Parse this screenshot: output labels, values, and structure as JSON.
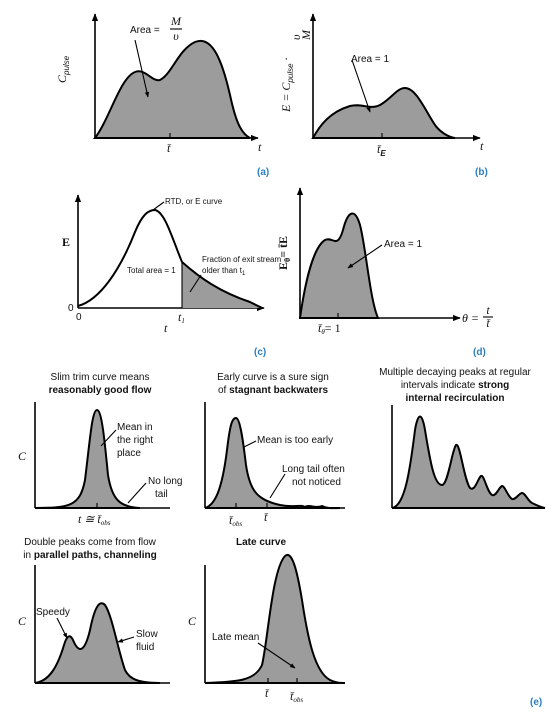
{
  "panel_labels": {
    "a": "(a)",
    "b": "(b)",
    "c": "(c)",
    "d": "(d)",
    "e": "(e)"
  },
  "panel_a": {
    "ylabel": "C",
    "ylabel_sub": "pulse",
    "area_prefix": "Area =",
    "area_num": "M",
    "area_den": "υ",
    "t_axis": "t",
    "tbar": "t̄"
  },
  "panel_b": {
    "ylabel": "E = C",
    "ylabel_sub": "pulse",
    "ylabel_frac_num": "υ",
    "ylabel_frac_den": "M",
    "area": "Area = 1",
    "t_axis": "t",
    "tbar": "t̄",
    "tbar_sub": "E"
  },
  "panel_c": {
    "ylabel": "E",
    "curve_label": "RTD, or E curve",
    "total": "Total area = 1",
    "frac_line1": "Fraction of exit stream",
    "frac_line2": "older than t",
    "frac_sub": "1",
    "x0": "0",
    "y0": "0",
    "t1": "t",
    "t1_sub": "1",
    "t_axis": "t"
  },
  "panel_d": {
    "ylabel": "E",
    "ylabel_sub": "θ",
    "ylabel_eq": "= t̄E",
    "area": "Area = 1",
    "theta_bar": "t̄",
    "theta_bar_sub": "θ",
    "theta_bar_eq": "= 1",
    "theta_axis": "θ =",
    "theta_num": "t",
    "theta_den": "t̄"
  },
  "e1": {
    "caption1": "Slim trim curve means",
    "caption2": "reasonably good flow",
    "c": "C",
    "mean1": "Mean in",
    "mean2": "the right",
    "mean3": "place",
    "tail1": "No long",
    "tail2": "tail",
    "xlab": "t ≅ t̄",
    "xlab_sub": "obs"
  },
  "e2": {
    "caption1": "Early curve is a sure sign",
    "caption2_pre": "of",
    "caption2": "stagnant backwaters",
    "mean": "Mean is too early",
    "tail1": "Long tail often",
    "tail2": "not noticed",
    "tobs": "t̄",
    "tobs_sub": "obs",
    "tbar": "t̄"
  },
  "e3": {
    "caption1": "Multiple decaying peaks at regular",
    "caption2_pre": "intervals indicate",
    "caption2_b": "strong",
    "caption3": "internal recirculation"
  },
  "e4": {
    "caption1": "Double peaks come from flow",
    "caption2_pre": "in",
    "caption2_b": "parallel paths, channeling",
    "c": "C",
    "speedy": "Speedy",
    "slow1": "Slow",
    "slow2": "fluid"
  },
  "e5": {
    "caption": "Late curve",
    "c": "C",
    "late": "Late mean",
    "tbar": "t̄",
    "tobs": "t̄",
    "tobs_sub": "obs"
  }
}
